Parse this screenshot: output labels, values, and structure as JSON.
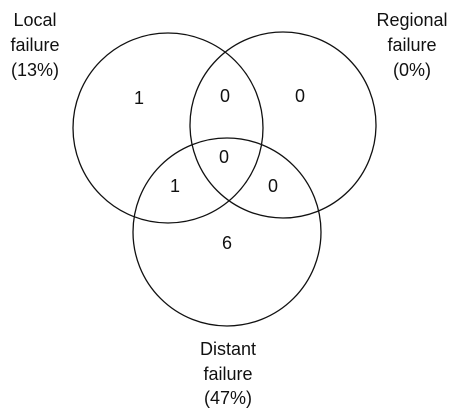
{
  "sets": [
    {
      "label": [
        "Local",
        "failure",
        "(13%)"
      ]
    },
    {
      "label": [
        "Regional",
        "failure",
        "(0%)"
      ]
    },
    {
      "label": [
        "Distant",
        "failure",
        "(47%)"
      ]
    }
  ],
  "regions": [
    1,
    0,
    0,
    0,
    1,
    0,
    6
  ]
}
